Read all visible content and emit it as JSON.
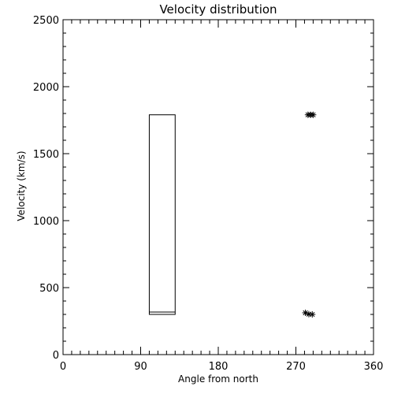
{
  "chart_data": {
    "type": "scatter",
    "title": "Velocity distribution",
    "xlabel": "Angle from north",
    "ylabel": "Velocity (km/s)",
    "xlim": [
      0,
      360
    ],
    "ylim": [
      0,
      2500
    ],
    "x_ticks": [
      0,
      90,
      180,
      270,
      360
    ],
    "y_ticks": [
      0,
      500,
      1000,
      1500,
      2000,
      2500
    ],
    "x_minor_step": 10,
    "y_minor_step": 100,
    "grid": false,
    "rectangle": {
      "x_range": [
        100,
        130
      ],
      "y_range": [
        300,
        1790
      ],
      "inner_line_y": 318
    },
    "points": [
      {
        "x": 284,
        "y": 1790
      },
      {
        "x": 287,
        "y": 1790
      },
      {
        "x": 290,
        "y": 1790
      },
      {
        "x": 281,
        "y": 312
      },
      {
        "x": 285,
        "y": 302
      },
      {
        "x": 289,
        "y": 300
      }
    ],
    "marker": "asterisk"
  }
}
